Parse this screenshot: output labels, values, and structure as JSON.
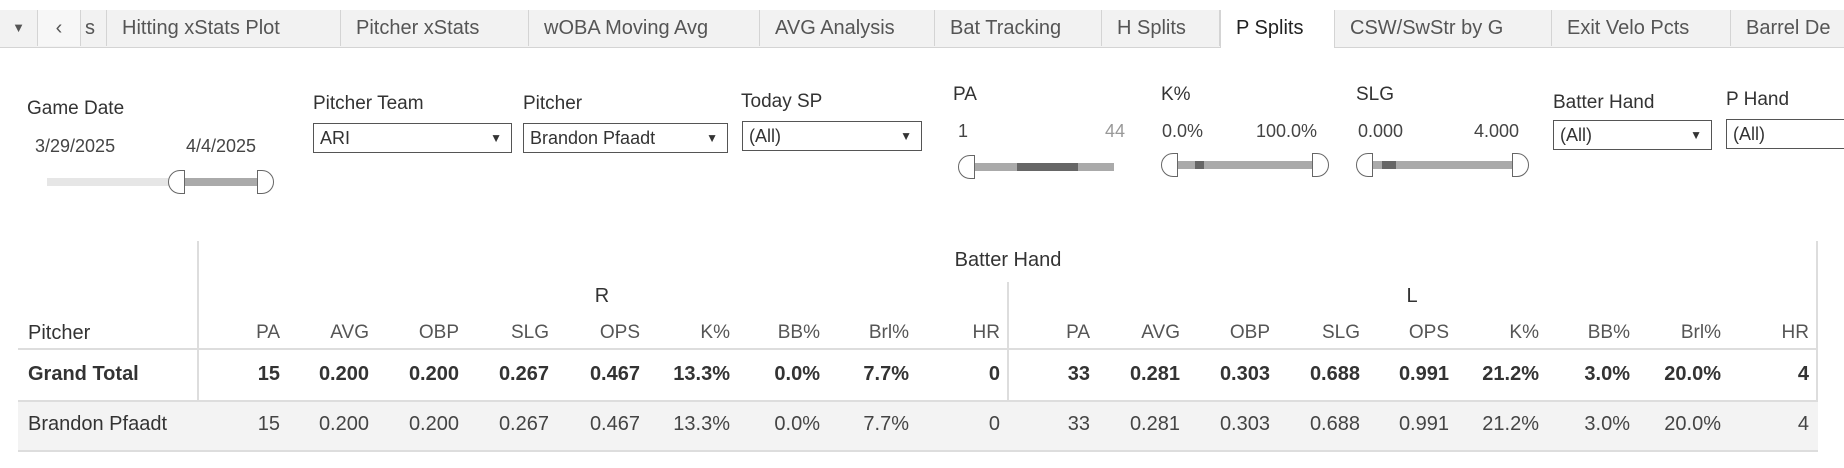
{
  "tabs": {
    "menu_icon": "dropdown-triangle",
    "back_icon": "chevron-left",
    "items": [
      {
        "label": "s",
        "active": false
      },
      {
        "label": "Hitting xStats Plot",
        "active": false
      },
      {
        "label": "Pitcher xStats",
        "active": false
      },
      {
        "label": "wOBA Moving Avg",
        "active": false
      },
      {
        "label": "AVG Analysis",
        "active": false
      },
      {
        "label": "Bat Tracking",
        "active": false
      },
      {
        "label": "H Splits",
        "active": false
      },
      {
        "label": "P Splits",
        "active": true
      },
      {
        "label": "CSW/SwStr by G",
        "active": false
      },
      {
        "label": "Exit Velo Pcts",
        "active": false
      },
      {
        "label": "Barrel De",
        "active": false
      }
    ]
  },
  "filters": {
    "game_date": {
      "label": "Game Date",
      "min": "3/29/2025",
      "max": "4/4/2025"
    },
    "pitcher_team": {
      "label": "Pitcher Team",
      "value": "ARI"
    },
    "pitcher": {
      "label": "Pitcher",
      "value": "Brandon Pfaadt"
    },
    "today_sp": {
      "label": "Today SP",
      "value": "(All)"
    },
    "pa": {
      "label": "PA",
      "min": "1",
      "max": "44"
    },
    "k_pct": {
      "label": "K%",
      "min": "0.0%",
      "max": "100.0%"
    },
    "slg": {
      "label": "SLG",
      "min": "0.000",
      "max": "4.000"
    },
    "batter_hand": {
      "label": "Batter Hand",
      "value": "(All)"
    },
    "p_hand": {
      "label": "P Hand",
      "value": "(All)"
    }
  },
  "table": {
    "group_header": "Batter Hand",
    "row_header": "Pitcher",
    "groups": [
      "R",
      "L"
    ],
    "columns": [
      "PA",
      "AVG",
      "OBP",
      "SLG",
      "OPS",
      "K%",
      "BB%",
      "Brl%",
      "HR"
    ],
    "rows": [
      {
        "name": "Grand Total",
        "bold": true,
        "R": [
          "15",
          "0.200",
          "0.200",
          "0.267",
          "0.467",
          "13.3%",
          "0.0%",
          "7.7%",
          "0"
        ],
        "L": [
          "33",
          "0.281",
          "0.303",
          "0.688",
          "0.991",
          "21.2%",
          "3.0%",
          "20.0%",
          "4"
        ]
      },
      {
        "name": "Brandon Pfaadt",
        "bold": false,
        "R": [
          "15",
          "0.200",
          "0.200",
          "0.267",
          "0.467",
          "13.3%",
          "0.0%",
          "7.7%",
          "0"
        ],
        "L": [
          "33",
          "0.281",
          "0.303",
          "0.688",
          "0.991",
          "21.2%",
          "3.0%",
          "20.0%",
          "4"
        ]
      }
    ]
  }
}
